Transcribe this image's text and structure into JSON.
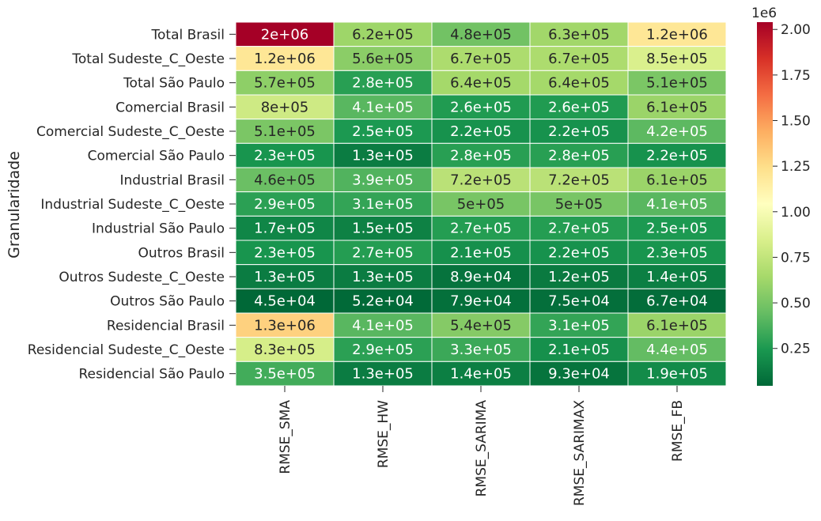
{
  "chart_data": {
    "type": "heatmap",
    "title": "",
    "xlabel": "",
    "ylabel": "Granularidade",
    "colormap": "RdYlGn_r",
    "columns": [
      "RMSE_SMA",
      "RMSE_HW",
      "RMSE_SARIMA",
      "RMSE_SARIMAX",
      "RMSE_FB"
    ],
    "rows": [
      "Total Brasil",
      "Total Sudeste_C_Oeste",
      "Total São Paulo",
      "Comercial Brasil",
      "Comercial Sudeste_C_Oeste",
      "Comercial São Paulo",
      "Industrial Brasil",
      "Industrial Sudeste_C_Oeste",
      "Industrial São Paulo",
      "Outros Brasil",
      "Outros Sudeste_C_Oeste",
      "Outros São Paulo",
      "Residencial Brasil",
      "Residencial Sudeste_C_Oeste",
      "Residencial São Paulo"
    ],
    "values": [
      [
        2040000,
        620000,
        480000,
        630000,
        1200000
      ],
      [
        1200000,
        560000,
        670000,
        670000,
        850000
      ],
      [
        570000,
        280000,
        640000,
        640000,
        510000
      ],
      [
        800000,
        410000,
        260000,
        260000,
        610000
      ],
      [
        510000,
        250000,
        220000,
        220000,
        420000
      ],
      [
        230000,
        130000,
        280000,
        280000,
        220000
      ],
      [
        460000,
        390000,
        720000,
        720000,
        610000
      ],
      [
        290000,
        310000,
        500000,
        500000,
        410000
      ],
      [
        170000,
        150000,
        270000,
        270000,
        250000
      ],
      [
        230000,
        270000,
        210000,
        220000,
        230000
      ],
      [
        130000,
        130000,
        89000,
        120000,
        140000
      ],
      [
        45000,
        52000,
        79000,
        75000,
        67000
      ],
      [
        1300000,
        410000,
        540000,
        310000,
        610000
      ],
      [
        830000,
        290000,
        330000,
        210000,
        440000
      ],
      [
        350000,
        130000,
        140000,
        93000,
        190000
      ]
    ],
    "annotations": [
      [
        "2e+06",
        "6.2e+05",
        "4.8e+05",
        "6.3e+05",
        "1.2e+06"
      ],
      [
        "1.2e+06",
        "5.6e+05",
        "6.7e+05",
        "6.7e+05",
        "8.5e+05"
      ],
      [
        "5.7e+05",
        "2.8e+05",
        "6.4e+05",
        "6.4e+05",
        "5.1e+05"
      ],
      [
        "8e+05",
        "4.1e+05",
        "2.6e+05",
        "2.6e+05",
        "6.1e+05"
      ],
      [
        "5.1e+05",
        "2.5e+05",
        "2.2e+05",
        "2.2e+05",
        "4.2e+05"
      ],
      [
        "2.3e+05",
        "1.3e+05",
        "2.8e+05",
        "2.8e+05",
        "2.2e+05"
      ],
      [
        "4.6e+05",
        "3.9e+05",
        "7.2e+05",
        "7.2e+05",
        "6.1e+05"
      ],
      [
        "2.9e+05",
        "3.1e+05",
        "5e+05",
        "5e+05",
        "4.1e+05"
      ],
      [
        "1.7e+05",
        "1.5e+05",
        "2.7e+05",
        "2.7e+05",
        "2.5e+05"
      ],
      [
        "2.3e+05",
        "2.7e+05",
        "2.1e+05",
        "2.2e+05",
        "2.3e+05"
      ],
      [
        "1.3e+05",
        "1.3e+05",
        "8.9e+04",
        "1.2e+05",
        "1.4e+05"
      ],
      [
        "4.5e+04",
        "5.2e+04",
        "7.9e+04",
        "7.5e+04",
        "6.7e+04"
      ],
      [
        "1.3e+06",
        "4.1e+05",
        "5.4e+05",
        "3.1e+05",
        "6.1e+05"
      ],
      [
        "8.3e+05",
        "2.9e+05",
        "3.3e+05",
        "2.1e+05",
        "4.4e+05"
      ],
      [
        "3.5e+05",
        "1.3e+05",
        "1.4e+05",
        "9.3e+04",
        "1.9e+05"
      ]
    ],
    "colorbar": {
      "range": [
        45000,
        2040000
      ],
      "multiplier_label": "1e6",
      "ticks": [
        0.25,
        0.5,
        0.75,
        1.0,
        1.25,
        1.5,
        1.75,
        2.0
      ],
      "tick_labels": [
        "0.25",
        "0.50",
        "0.75",
        "1.00",
        "1.25",
        "1.50",
        "1.75",
        "2.00"
      ],
      "scale_factor": 1000000
    }
  }
}
